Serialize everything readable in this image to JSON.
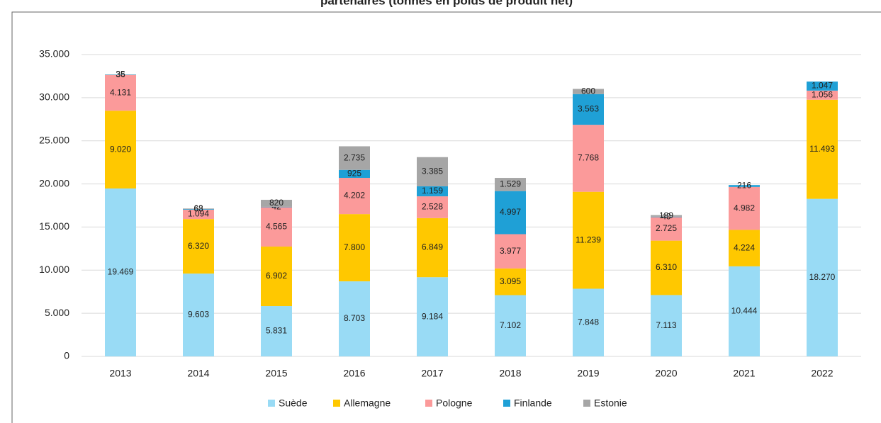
{
  "chart_data": {
    "type": "stacked_bar",
    "title": "partenaires (tonnes en poids de produit net)",
    "categories": [
      "2013",
      "2014",
      "2015",
      "2016",
      "2017",
      "2018",
      "2019",
      "2020",
      "2021",
      "2022"
    ],
    "series": [
      {
        "name": "Suède",
        "color": "#99dbf5",
        "values": [
          19469,
          9603,
          5831,
          8703,
          9184,
          7102,
          7848,
          7113,
          10444,
          18270
        ],
        "value_labels": [
          "19.469",
          "9.603",
          "5.831",
          "8.703",
          "9.184",
          "7.102",
          "7.848",
          "7.113",
          "10.444",
          "18.270"
        ]
      },
      {
        "name": "Allemagne",
        "color": "#ffc800",
        "values": [
          9020,
          6320,
          6902,
          7800,
          6849,
          3095,
          11239,
          6310,
          4224,
          11493
        ],
        "value_labels": [
          "9.020",
          "6.320",
          "6.902",
          "7.800",
          "6.849",
          "3.095",
          "11.239",
          "6.310",
          "4.224",
          "11.493"
        ]
      },
      {
        "name": "Pologne",
        "color": "#fb9a9a",
        "values": [
          4131,
          1094,
          4565,
          4202,
          2528,
          3977,
          7768,
          2725,
          4982,
          1056
        ],
        "value_labels": [
          "4.131",
          "1.094",
          "4.565",
          "4.202",
          "2.528",
          "3.977",
          "7.768",
          "2.725",
          "4.982",
          "1.056"
        ]
      },
      {
        "name": "Finlande",
        "color": "#1fa0d6",
        "values": [
          36,
          68,
          42,
          925,
          1159,
          4997,
          3563,
          49,
          216,
          1047
        ],
        "value_labels": [
          "36",
          "68",
          "42",
          "925",
          "1.159",
          "4.997",
          "3.563",
          "49",
          "216",
          "1.047"
        ]
      },
      {
        "name": "Estonie",
        "color": "#a6a6a6",
        "values": [
          35,
          63,
          820,
          2735,
          3385,
          1529,
          600,
          189,
          null,
          null
        ],
        "value_labels": [
          "35",
          "63",
          "820",
          "2.735",
          "3.385",
          "1.529",
          "600",
          "189",
          null,
          null
        ]
      }
    ],
    "ylim": [
      0,
      35000
    ],
    "yticks": [
      0,
      {
        "value": 5000,
        "label": "5.000"
      },
      {
        "value": 10000,
        "label": "10.000"
      },
      {
        "value": 15000,
        "label": "15.000"
      },
      {
        "value": 20000,
        "label": "20.000"
      },
      {
        "value": 25000,
        "label": "25.000"
      },
      {
        "value": 30000,
        "label": "30.000"
      },
      {
        "value": 35000,
        "label": "35.000"
      }
    ],
    "grid": true,
    "legend": "bottom"
  }
}
